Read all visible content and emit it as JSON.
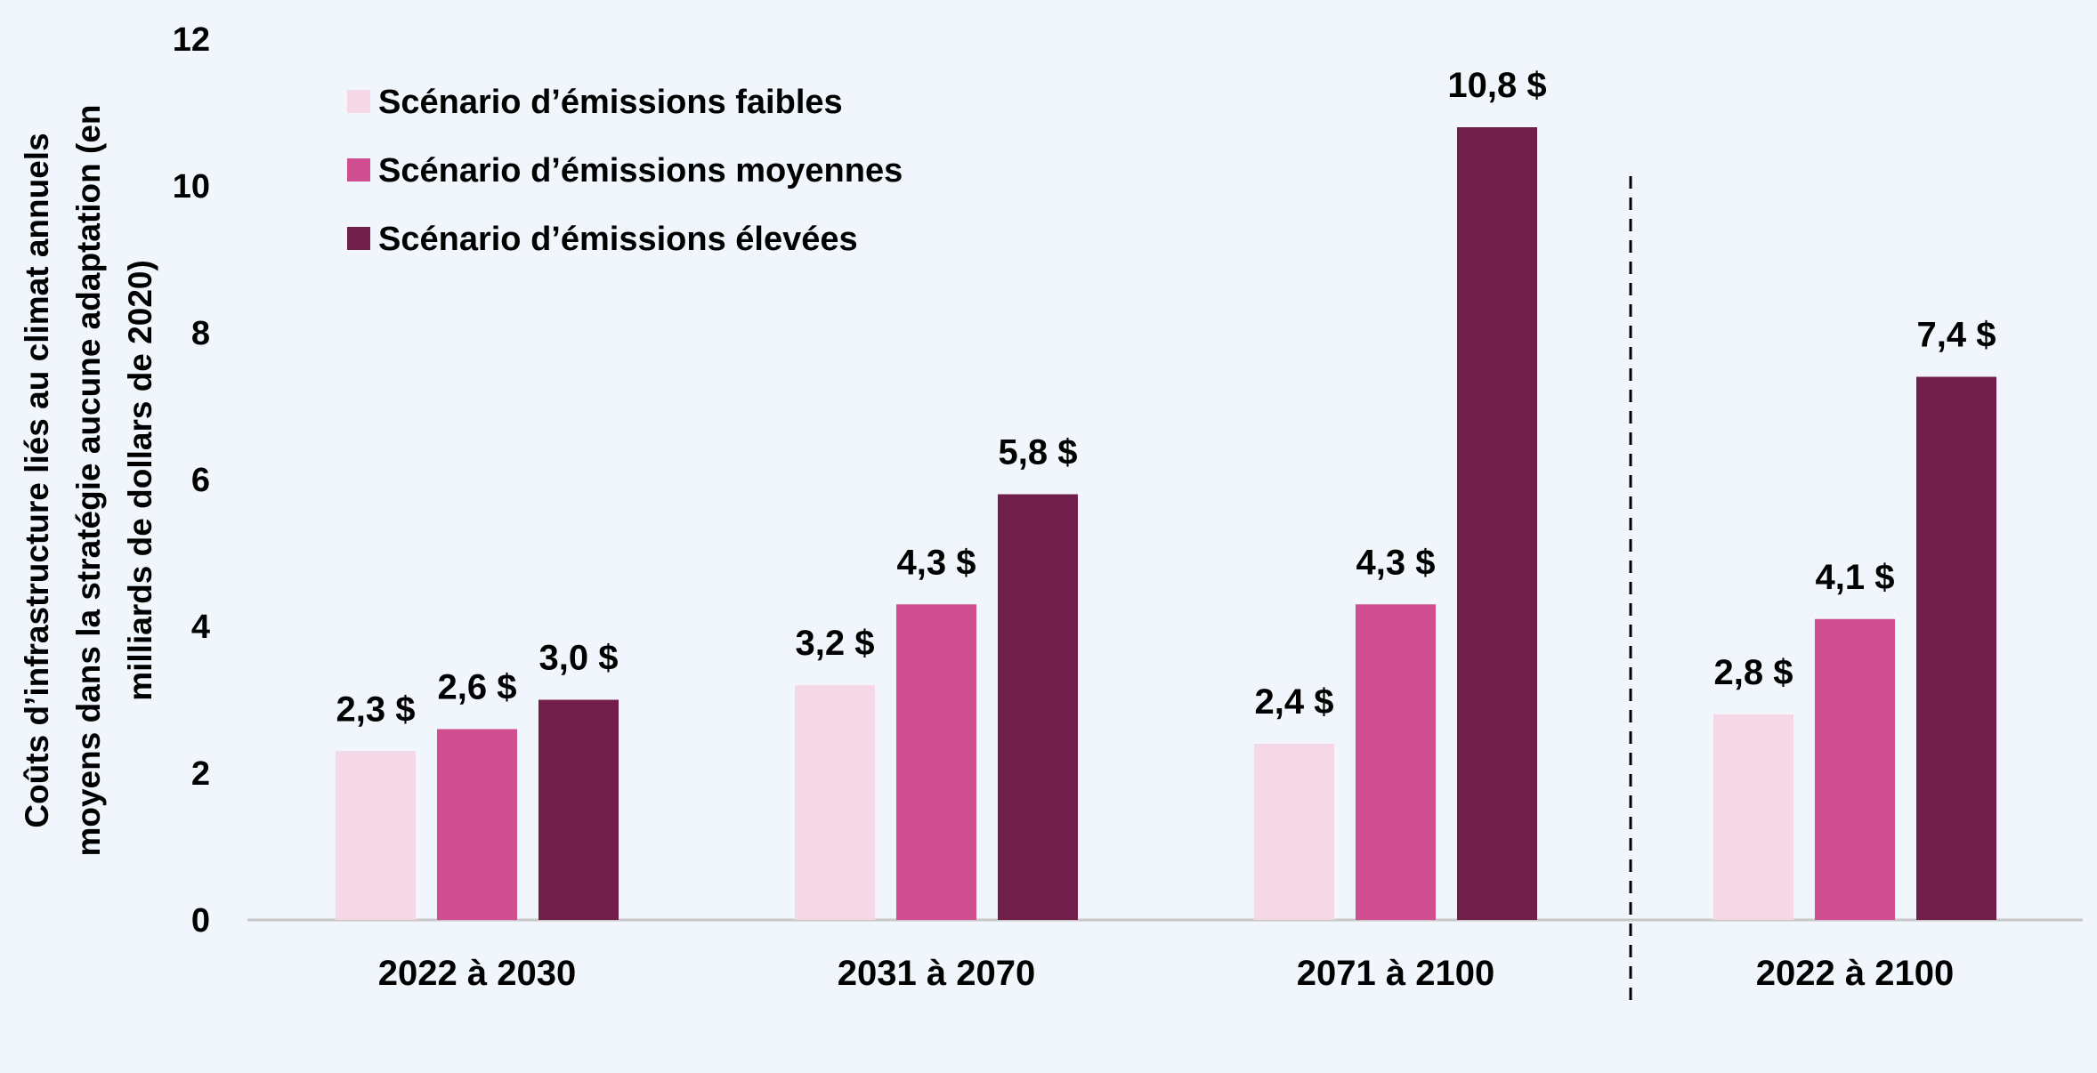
{
  "chart_data": {
    "type": "bar",
    "categories": [
      "2022 à 2030",
      "2031 à 2070",
      "2071 à 2100",
      "2022 à 2100"
    ],
    "series": [
      {
        "name": "Scénario d’émissions faibles",
        "color": "#f4d8e6",
        "values": [
          2.3,
          3.2,
          2.4,
          2.8
        ],
        "labels": [
          "2,3 $",
          "3,2 $",
          "2,4 $",
          "2,8 $"
        ]
      },
      {
        "name": "Scénario d’émissions moyennes",
        "color": "#d14f91",
        "values": [
          2.6,
          4.3,
          4.3,
          4.1
        ],
        "labels": [
          "2,6 $",
          "4,3 $",
          "4,3 $",
          "4,1 $"
        ]
      },
      {
        "name": "Scénario d’émissions élevées",
        "color": "#721e4b",
        "values": [
          3.0,
          5.8,
          10.8,
          7.4
        ],
        "labels": [
          "3,0 $",
          "5,8 $",
          "10,8 $",
          "7,4 $"
        ]
      }
    ],
    "ylabel_lines": [
      "Coûts d’infrastructure liés au climat annuels",
      "moyens dans la stratégie aucune adaptation (en",
      "milliards de dollars de 2020)"
    ],
    "ylim": [
      0,
      12
    ],
    "yticks": [
      "0",
      "2",
      "4",
      "6",
      "8",
      "10",
      "12"
    ],
    "grid": false,
    "legend_position": "top-left",
    "separator": "dashed vertical line before last category"
  }
}
